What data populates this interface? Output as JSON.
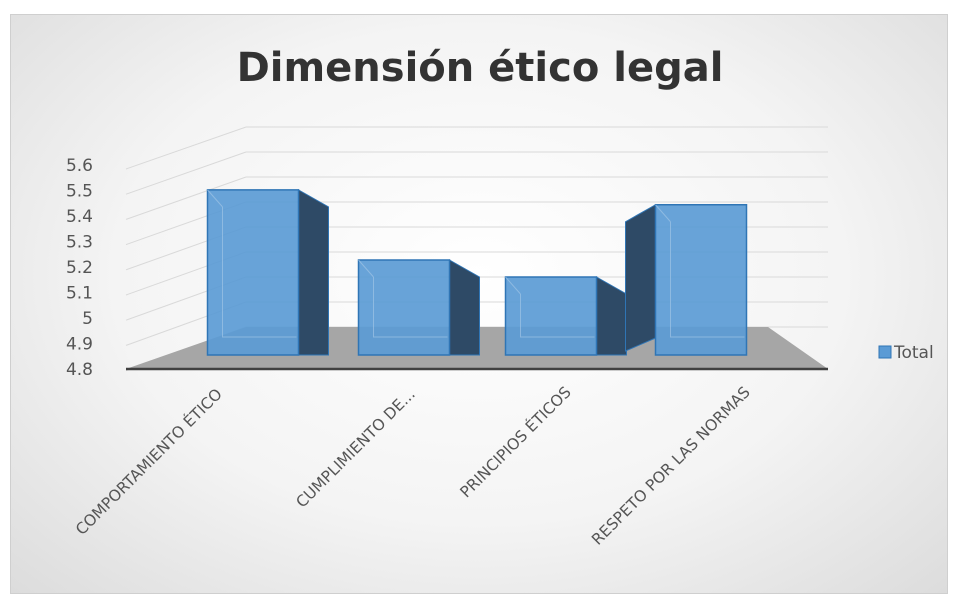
{
  "chart_data": {
    "type": "bar",
    "title": "Dimensión ético legal",
    "categories": [
      "COMPORTAMIENTO ÉTICO",
      "CUMPLIMIENTO DE...",
      "PRINCIPIOS ÉTICOS",
      "RESPETO POR LAS NORMAS"
    ],
    "series": [
      {
        "name": "Total",
        "values": [
          5.53,
          5.2,
          5.12,
          5.46
        ]
      }
    ],
    "ylim": [
      4.8,
      5.6
    ],
    "yticks": [
      "5.6",
      "5.5",
      "5.4",
      "5.3",
      "5.2",
      "5.1",
      "5",
      "4.9",
      "4.8"
    ],
    "grid": true,
    "legend_position": "right",
    "style": "3d-column",
    "colors": {
      "bar_front": "#5b9bd5",
      "bar_side": "#2e4a66",
      "bar_top": "#3d6f9e",
      "bar_edge": "#2f75b5",
      "floor": "#a6a6a6",
      "gridline": "#d9d9d9"
    }
  }
}
